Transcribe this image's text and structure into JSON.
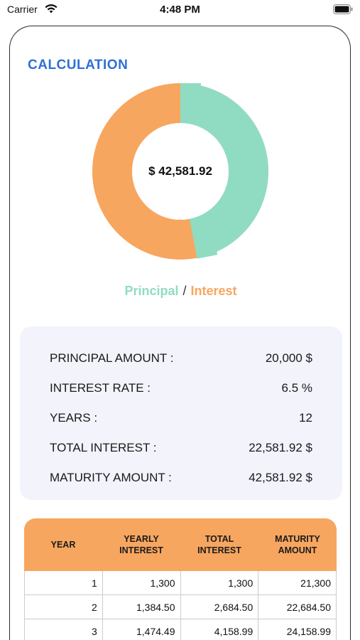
{
  "status_bar": {
    "carrier": "Carrier",
    "time": "4:48 PM",
    "icons": [
      "wifi-icon",
      "battery-icon"
    ]
  },
  "title": "CALCULATION",
  "donut": {
    "center_label": "$ 42,581.92",
    "segments": [
      {
        "name": "Principal",
        "value": 20000,
        "color": "#8fdcc3"
      },
      {
        "name": "Interest",
        "value": 22581.92,
        "color": "#f7a65f"
      }
    ]
  },
  "legend": {
    "principal": "Principal",
    "separator": "/",
    "interest": "Interest"
  },
  "summary": [
    {
      "label": "PRINCIPAL AMOUNT :",
      "value": "20,000 $"
    },
    {
      "label": "INTEREST RATE :",
      "value": "6.5 %"
    },
    {
      "label": "YEARS :",
      "value": "12"
    },
    {
      "label": "TOTAL INTEREST :",
      "value": "22,581.92 $"
    },
    {
      "label": "MATURITY AMOUNT :",
      "value": "42,581.92 $"
    }
  ],
  "table": {
    "headers": [
      "YEAR",
      "YEARLY\nINTEREST",
      "TOTAL\nINTEREST",
      "MATURITY\nAMOUNT"
    ],
    "rows": [
      [
        "1",
        "1,300",
        "1,300",
        "21,300"
      ],
      [
        "2",
        "1,384.50",
        "2,684.50",
        "22,684.50"
      ],
      [
        "3",
        "1,474.49",
        "4,158.99",
        "24,158.99"
      ]
    ]
  },
  "colors": {
    "accent_blue": "#2f6fd6",
    "principal": "#8fdcc3",
    "interest": "#f7a65f",
    "summary_bg": "#f2f3fb"
  }
}
